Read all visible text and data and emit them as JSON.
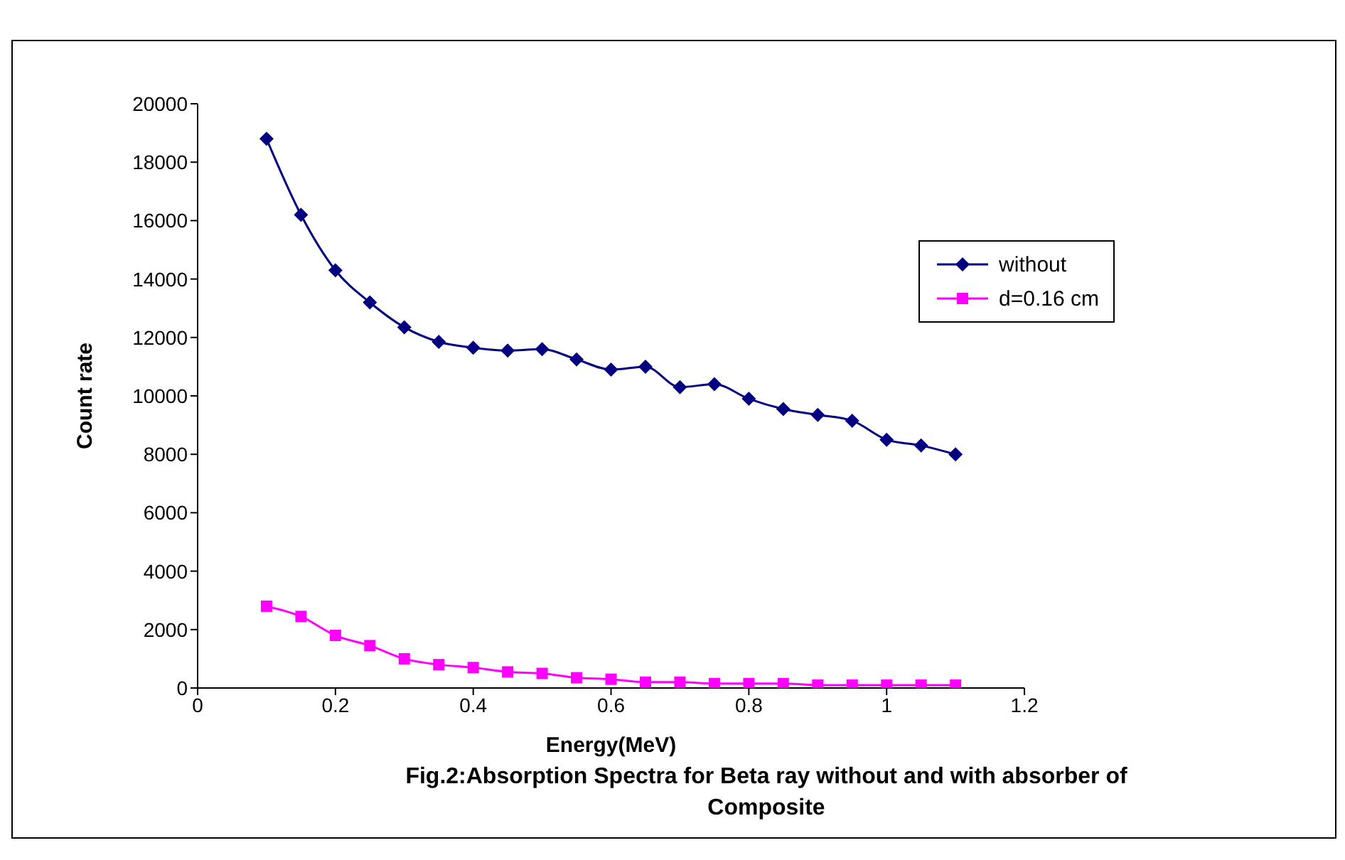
{
  "chart_data": {
    "type": "line",
    "title": "Fig.2:Absorption Spectra for Beta ray without and with absorber of Composite",
    "xlabel": "Energy(MeV)",
    "ylabel": "Count  rate",
    "x": [
      0.1,
      0.15,
      0.2,
      0.25,
      0.3,
      0.35,
      0.4,
      0.45,
      0.5,
      0.55,
      0.6,
      0.65,
      0.7,
      0.75,
      0.8,
      0.85,
      0.9,
      0.95,
      1.0,
      1.05,
      1.1
    ],
    "series": [
      {
        "name": "without",
        "color": "#000080",
        "marker": "diamond",
        "values": [
          18800,
          16200,
          14300,
          13200,
          12350,
          11850,
          11650,
          11550,
          11600,
          11250,
          10900,
          11000,
          10300,
          10400,
          9900,
          9550,
          9350,
          9150,
          8500,
          8300,
          8000
        ]
      },
      {
        "name": "d=0.16 cm",
        "color": "#ff00ff",
        "marker": "square",
        "values": [
          2800,
          2450,
          1800,
          1450,
          1000,
          800,
          700,
          550,
          500,
          350,
          300,
          200,
          200,
          150,
          150,
          150,
          100,
          100,
          100,
          100,
          100
        ]
      }
    ],
    "xlim": [
      0,
      1.2
    ],
    "xticks": [
      0,
      0.2,
      0.4,
      0.6,
      0.8,
      1,
      1.2
    ],
    "ylim": [
      0,
      20000
    ],
    "yticks": [
      0,
      2000,
      4000,
      6000,
      8000,
      10000,
      12000,
      14000,
      16000,
      18000,
      20000
    ],
    "grid": false,
    "legend": "top right"
  }
}
